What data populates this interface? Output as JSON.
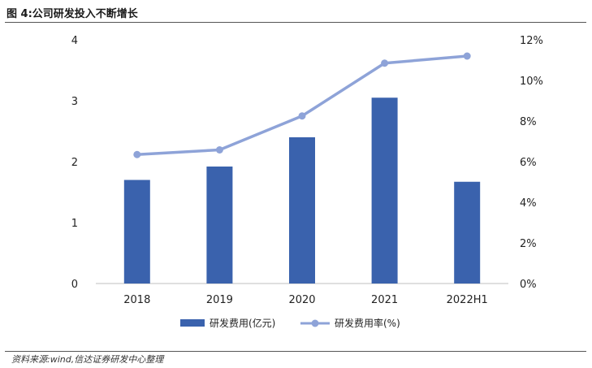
{
  "figure": {
    "title": "图 4:公司研发投入不断增长",
    "source": "资料来源:wind,信达证券研发中心整理"
  },
  "chart_data": {
    "type": "bar",
    "categories": [
      "2018",
      "2019",
      "2020",
      "2021",
      "2022H1"
    ],
    "series": [
      {
        "name": "研发费用(亿元)",
        "type": "bar",
        "axis": "left",
        "color": "#3a62ad",
        "values": [
          1.7,
          1.92,
          2.4,
          3.05,
          1.67
        ]
      },
      {
        "name": "研发费用率(%)",
        "type": "line",
        "axis": "right",
        "color": "#8ea3d8",
        "values": [
          6.35,
          6.58,
          8.25,
          10.85,
          11.2
        ]
      }
    ],
    "y_left": {
      "min": 0,
      "max": 4,
      "ticks": [
        "0",
        "1",
        "2",
        "3",
        "4"
      ]
    },
    "y_right": {
      "min": 0,
      "max": 12,
      "ticks": [
        "0%",
        "2%",
        "4%",
        "6%",
        "8%",
        "10%",
        "12%"
      ]
    },
    "legend": "bottom",
    "grid": false
  }
}
